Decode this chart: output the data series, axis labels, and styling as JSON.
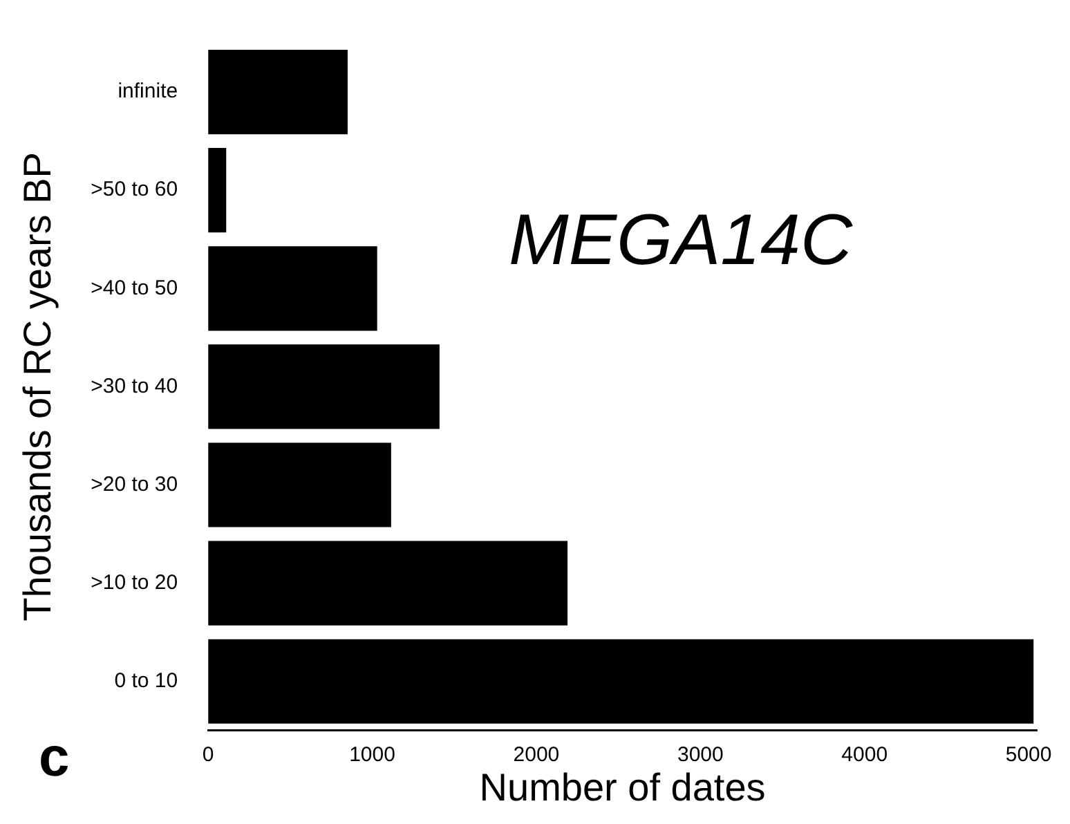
{
  "chart_data": {
    "type": "bar",
    "orientation": "horizontal",
    "xlabel": "Number of dates",
    "ylabel": "Thousands of RC years BP",
    "categories": [
      "infinite",
      ">50 to 60",
      ">40 to 50",
      ">30 to 40",
      ">20 to 30",
      ">10 to 20",
      "0 to 10"
    ],
    "values": [
      850,
      110,
      1030,
      1410,
      1115,
      2190,
      5030
    ],
    "color": "#000000",
    "xlim": [
      0,
      5050
    ],
    "xticks": [
      0,
      1000,
      2000,
      3000,
      4000,
      5000
    ],
    "grid": false,
    "legend": false,
    "annotations": [
      "MEGA14C",
      "c"
    ]
  }
}
